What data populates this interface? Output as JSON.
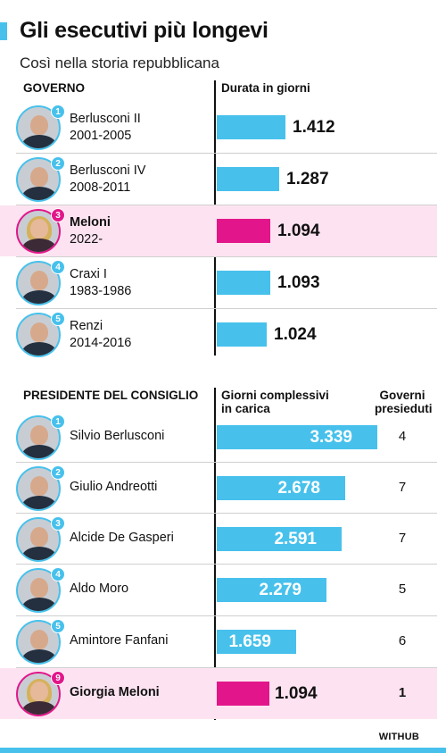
{
  "title": "Gli esecutivi più longevi",
  "subtitle": "Così nella storia repubblicana",
  "colors": {
    "accent": "#47c1ec",
    "highlight": "#e2168a",
    "highlight_bg": "#fde3f1"
  },
  "section1": {
    "header_left": "GOVERNO",
    "header_right": "Durata in giorni"
  },
  "section2": {
    "header_left": "PRESIDENTE DEL CONSIGLIO",
    "header_middle_line1": "Giorni complessivi",
    "header_middle_line2": "in carica",
    "header_right_line1": "Governi",
    "header_right_line2": "presieduti"
  },
  "chart_data": [
    {
      "type": "bar",
      "orientation": "horizontal",
      "ylabel": "Durata in giorni",
      "xlim": [
        0,
        1500
      ],
      "categories": [
        {
          "rank": "1",
          "name": "Berlusconi II",
          "years": "2001-2005",
          "highlight": false
        },
        {
          "rank": "2",
          "name": "Berlusconi IV",
          "years": "2008-2011",
          "highlight": false
        },
        {
          "rank": "3",
          "name": "Meloni",
          "years": "2022-",
          "highlight": true
        },
        {
          "rank": "4",
          "name": "Craxi I",
          "years": "1983-1986",
          "highlight": false
        },
        {
          "rank": "5",
          "name": "Renzi",
          "years": "2014-2016",
          "highlight": false
        }
      ],
      "values": [
        1412,
        1287,
        1094,
        1093,
        1024
      ],
      "labels": [
        "1.412",
        "1.287",
        "1.094",
        "1.093",
        "1.024"
      ]
    },
    {
      "type": "bar",
      "orientation": "horizontal",
      "ylabel": "Giorni complessivi in carica",
      "xlim": [
        0,
        3600
      ],
      "categories": [
        {
          "rank": "1",
          "name": "Silvio Berlusconi",
          "highlight": false
        },
        {
          "rank": "2",
          "name": "Giulio Andreotti",
          "highlight": false
        },
        {
          "rank": "3",
          "name": "Alcide De Gasperi",
          "highlight": false
        },
        {
          "rank": "4",
          "name": "Aldo Moro",
          "highlight": false
        },
        {
          "rank": "5",
          "name": "Amintore Fanfani",
          "highlight": false
        },
        {
          "rank": "9",
          "name": "Giorgia Meloni",
          "highlight": true
        }
      ],
      "values": [
        3339,
        2678,
        2591,
        2279,
        1659,
        1094
      ],
      "labels": [
        "3.339",
        "2.678",
        "2.591",
        "2.279",
        "1.659",
        "1.094"
      ],
      "governi_presieduti": [
        "4",
        "7",
        "7",
        "5",
        "6",
        "1"
      ]
    }
  ],
  "footer": {
    "brand": "WITHUB"
  }
}
